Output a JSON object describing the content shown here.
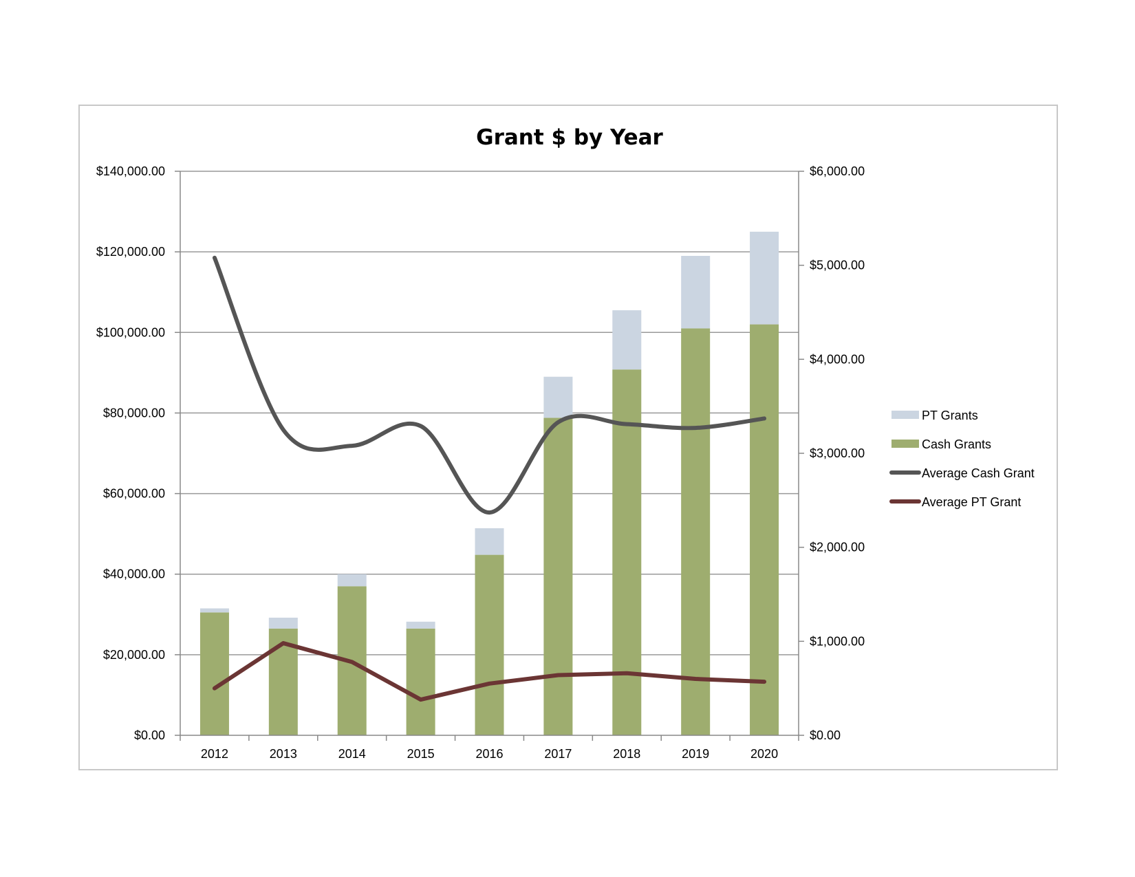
{
  "chart_data": {
    "type": "bar",
    "title": "Grant $ by Year",
    "categories": [
      "2012",
      "2013",
      "2014",
      "2015",
      "2016",
      "2017",
      "2018",
      "2019",
      "2020"
    ],
    "stacked": true,
    "y_left": {
      "range": [
        0,
        140000
      ],
      "ticks": [
        0,
        20000,
        40000,
        60000,
        80000,
        100000,
        120000,
        140000
      ],
      "tick_labels": [
        "$0.00",
        "$20,000.00",
        "$40,000.00",
        "$60,000.00",
        "$80,000.00",
        "$100,000.00",
        "$120,000.00",
        "$140,000.00"
      ]
    },
    "y_right": {
      "range": [
        0,
        6000
      ],
      "ticks": [
        0,
        1000,
        2000,
        3000,
        4000,
        5000,
        6000
      ],
      "tick_labels": [
        "$0.00",
        "$1,000.00",
        "$2,000.00",
        "$3,000.00",
        "$4,000.00",
        "$5,000.00",
        "$6,000.00"
      ]
    },
    "grid": true,
    "legend_position": "right",
    "series": [
      {
        "name": "Cash Grants",
        "kind": "bar",
        "axis": "left",
        "color": "#9ead6f",
        "values": [
          30500,
          26500,
          37000,
          26500,
          44800,
          78800,
          90800,
          101000,
          102000
        ]
      },
      {
        "name": "PT Grants",
        "kind": "bar",
        "axis": "left",
        "color": "#cbd5e1",
        "values": [
          1000,
          2700,
          3000,
          1700,
          6600,
          10200,
          14700,
          18000,
          23000
        ]
      },
      {
        "name": "Average Cash Grant",
        "kind": "line",
        "smooth": true,
        "axis": "right",
        "color": "#555555",
        "values": [
          5080,
          3250,
          3080,
          3290,
          2370,
          3330,
          3310,
          3270,
          3370
        ]
      },
      {
        "name": "Average PT Grant",
        "kind": "line",
        "smooth": false,
        "axis": "right",
        "color": "#6b3534",
        "values": [
          500,
          980,
          780,
          380,
          550,
          640,
          660,
          600,
          570
        ]
      }
    ]
  }
}
